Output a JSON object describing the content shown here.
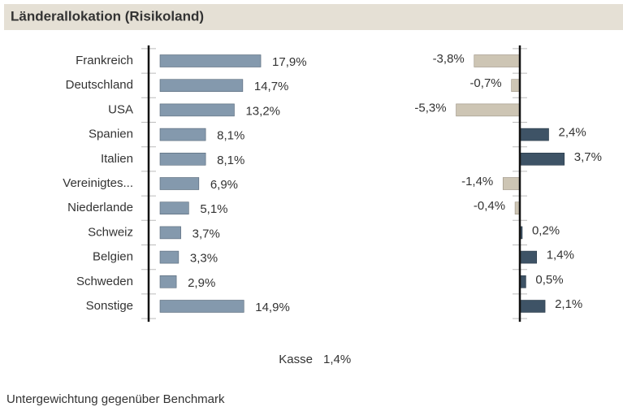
{
  "title": "Länderallokation (Risikoland)",
  "chart_data": [
    {
      "type": "hbar",
      "categories": [
        "Frankreich",
        "Deutschland",
        "USA",
        "Spanien",
        "Italien",
        "Vereinigtes...",
        "Niederlande",
        "Schweiz",
        "Belgien",
        "Schweden",
        "Sonstige"
      ],
      "values": [
        17.9,
        14.7,
        13.2,
        8.1,
        8.1,
        6.9,
        5.1,
        3.7,
        3.3,
        2.9,
        14.9
      ],
      "value_labels": [
        "17,9%",
        "14,7%",
        "13,2%",
        "8,1%",
        "8,1%",
        "6,9%",
        "5,1%",
        "3,7%",
        "3,3%",
        "2,9%",
        "14,9%"
      ],
      "color": "#8499ad"
    },
    {
      "type": "diverging",
      "values": [
        -3.8,
        -0.7,
        -5.3,
        2.4,
        3.7,
        -1.4,
        -0.4,
        0.2,
        1.4,
        0.5,
        2.1
      ],
      "value_labels": [
        "-3,8%",
        "-0,7%",
        "-5,3%",
        "2,4%",
        "3,7%",
        "-1,4%",
        "-0,4%",
        "0,2%",
        "1,4%",
        "0,5%",
        "2,1%"
      ],
      "positive_color": "#3e5366",
      "negative_color": "#cdc5b4"
    }
  ],
  "cash": {
    "label": "Kasse",
    "value": "1,4%"
  },
  "footer": "Untergewichtung gegenüber Benchmark"
}
